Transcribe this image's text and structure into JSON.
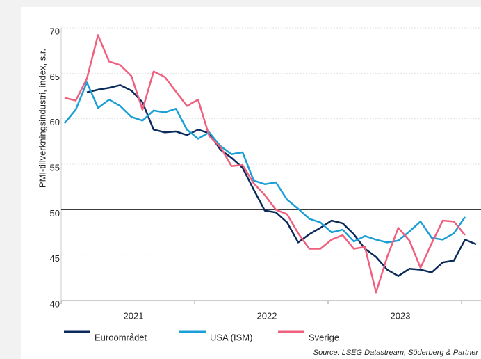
{
  "chart_data": {
    "type": "line",
    "y_label": "PMI-tillverkningsindustri, index, s.r.",
    "categories": [
      null,
      null,
      null,
      null,
      null,
      null,
      "2021",
      null,
      null,
      null,
      null,
      null,
      null,
      null,
      null,
      null,
      null,
      null,
      "2022",
      null,
      null,
      null,
      null,
      null,
      null,
      null,
      null,
      null,
      null,
      null,
      "2023",
      null,
      null,
      null,
      null,
      null,
      null,
      null
    ],
    "series": [
      {
        "name": "Euroområdet",
        "color": "#0b2a5c",
        "values": [
          null,
          null,
          62.9,
          63.2,
          63.4,
          63.7,
          63.1,
          61.8,
          58.8,
          58.5,
          58.6,
          58.2,
          58.8,
          58.4,
          56.6,
          55.7,
          54.6,
          52.2,
          49.9,
          49.7,
          48.6,
          46.4,
          47.3,
          48.0,
          48.8,
          48.5,
          47.3,
          45.7,
          44.8,
          43.4,
          42.7,
          43.5,
          43.4,
          43.1,
          44.2,
          44.4,
          46.7,
          46.2
        ]
      },
      {
        "name": "USA (ISM)",
        "color": "#1a9fd6",
        "values": [
          59.5,
          61.0,
          64.0,
          61.2,
          62.1,
          61.4,
          60.2,
          59.8,
          60.9,
          60.7,
          61.1,
          58.8,
          57.8,
          58.5,
          57.0,
          56.1,
          56.3,
          53.2,
          52.8,
          53.0,
          51.1,
          50.1,
          49.0,
          48.6,
          47.5,
          47.8,
          46.5,
          47.1,
          46.7,
          46.4,
          46.6,
          47.6,
          48.7,
          46.9,
          46.7,
          47.4,
          49.2,
          null
        ]
      },
      {
        "name": "Sverige",
        "color": "#ef5f7e",
        "values": [
          62.3,
          62.0,
          64.4,
          69.2,
          66.3,
          65.9,
          64.7,
          61.0,
          65.2,
          64.6,
          63.0,
          61.4,
          62.1,
          58.1,
          56.9,
          54.8,
          54.9,
          52.9,
          51.6,
          50.0,
          49.5,
          47.4,
          45.7,
          45.7,
          46.7,
          47.2,
          45.7,
          45.9,
          40.9,
          44.8,
          48.0,
          46.6,
          43.6,
          46.3,
          48.8,
          48.7,
          47.2,
          null
        ]
      }
    ],
    "ylim": [
      40,
      70
    ],
    "yticks": [
      40,
      45,
      50,
      55,
      60,
      65,
      70
    ],
    "grid": true,
    "ref_line": 50,
    "source": "Source: LSEG Datastream, Söderberg & Partner"
  }
}
